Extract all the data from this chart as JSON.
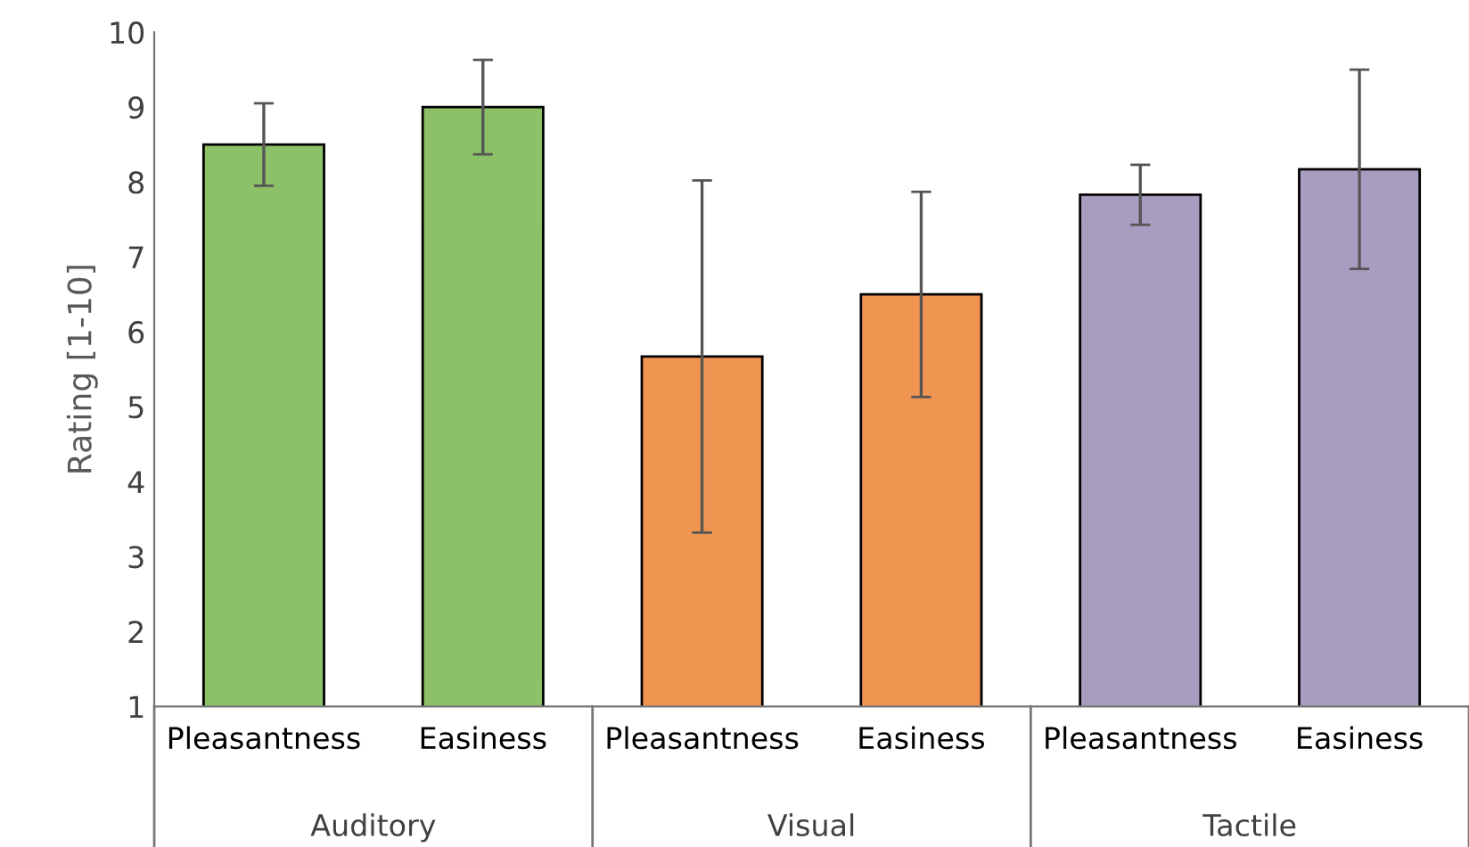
{
  "chart_data": {
    "type": "bar",
    "ylabel": "Rating [1-10]",
    "categories": [
      "Pleasantness",
      "Easiness",
      "Pleasantness",
      "Easiness",
      "Pleasantness",
      "Easiness"
    ],
    "values": [
      8.5,
      9.0,
      5.67,
      6.5,
      7.83,
      8.17
    ],
    "errors": [
      0.55,
      0.63,
      2.35,
      1.37,
      0.4,
      1.33
    ],
    "colors": [
      "#8cc168",
      "#8cc168",
      "#f09452",
      "#f09452",
      "#a89dc0",
      "#a89dc0"
    ],
    "annotations": [
      "Auditory",
      "Visual",
      "Tactile"
    ],
    "ylim": [
      1,
      10
    ],
    "yticks": [
      1,
      2,
      3,
      4,
      5,
      6,
      7,
      8,
      9,
      10
    ],
    "grid": false,
    "legend": false
  }
}
